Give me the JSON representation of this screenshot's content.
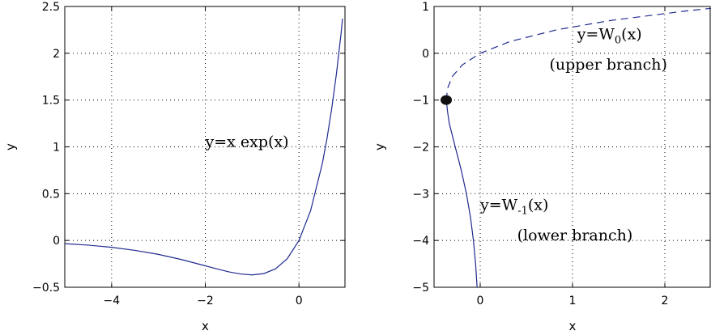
{
  "chart_data": [
    {
      "type": "line",
      "title": "",
      "xlabel": "x",
      "ylabel": "y",
      "xlim": [
        -5,
        1
      ],
      "ylim": [
        -0.5,
        2.5
      ],
      "xticks": [
        -4,
        -2,
        0
      ],
      "xtick_labels": [
        "−4",
        "−2",
        "0"
      ],
      "yticks": [
        -0.5,
        0,
        0.5,
        1,
        1.5,
        2,
        2.5
      ],
      "ytick_labels": [
        "−0.5",
        "0",
        "0.5",
        "1",
        "1.5",
        "2",
        "2.5"
      ],
      "grid": true,
      "series": [
        {
          "color": "#1f2a8f",
          "style": "solid",
          "x": [
            -5,
            -4.5,
            -4,
            -3.5,
            -3,
            -2.5,
            -2,
            -1.75,
            -1.5,
            -1.25,
            -1,
            -0.75,
            -0.5,
            -0.25,
            0,
            0.25,
            0.5,
            0.6,
            0.7,
            0.8,
            0.9,
            0.93
          ],
          "y": [
            -0.034,
            -0.05,
            -0.073,
            -0.106,
            -0.149,
            -0.205,
            -0.271,
            -0.304,
            -0.335,
            -0.358,
            -0.368,
            -0.354,
            -0.303,
            -0.195,
            0,
            0.321,
            0.824,
            1.093,
            1.41,
            1.78,
            2.214,
            2.37
          ]
        }
      ],
      "annotations": [
        {
          "text": "y=x exp(x)",
          "x": -2.0,
          "y": 1.0
        }
      ]
    },
    {
      "type": "line",
      "title": "",
      "xlabel": "x",
      "ylabel": "y",
      "xlim": [
        -0.5,
        2.5
      ],
      "ylim": [
        -5,
        1
      ],
      "xticks": [
        0,
        1,
        2
      ],
      "xtick_labels": [
        "0",
        "1",
        "2"
      ],
      "yticks": [
        -5,
        -4,
        -3,
        -2,
        -1,
        0,
        1
      ],
      "ytick_labels": [
        "−5",
        "−4",
        "−3",
        "−2",
        "−1",
        "0",
        "1"
      ],
      "grid": true,
      "series": [
        {
          "color": "#1f2a8f",
          "style": "dashed",
          "x": [
            -0.368,
            -0.3534,
            -0.3033,
            -0.1947,
            0,
            0.3209,
            0.8244,
            1.4096,
            2.2136,
            2.5
          ],
          "y": [
            -1,
            -0.75,
            -0.5,
            -0.25,
            0,
            0.25,
            0.5,
            0.7,
            0.9,
            0.96
          ]
        },
        {
          "color": "#1f2a8f",
          "style": "solid",
          "x": [
            -0.368,
            -0.3534,
            -0.3347,
            -0.2707,
            -0.2052,
            -0.1494,
            -0.1057,
            -0.0733,
            -0.05,
            -0.0337,
            -0.0295
          ],
          "y": [
            -1,
            -1.25,
            -1.5,
            -2,
            -2.5,
            -3,
            -3.5,
            -4,
            -4.5,
            -5,
            -5.15
          ]
        }
      ],
      "markers": [
        {
          "x": -0.368,
          "y": -1,
          "color": "#111111"
        }
      ],
      "annotations": [
        {
          "text": "y=W",
          "sub": "0",
          "after": "(x)",
          "x": 1.05,
          "y": 0.3
        },
        {
          "text": "(upper branch)",
          "x": 0.75,
          "y": -0.35
        },
        {
          "text": "y=W",
          "sub": "-1",
          "after": "(x)",
          "x": 0.0,
          "y": -3.35
        },
        {
          "text": "(lower branch)",
          "x": 0.4,
          "y": -4.0
        }
      ]
    }
  ]
}
